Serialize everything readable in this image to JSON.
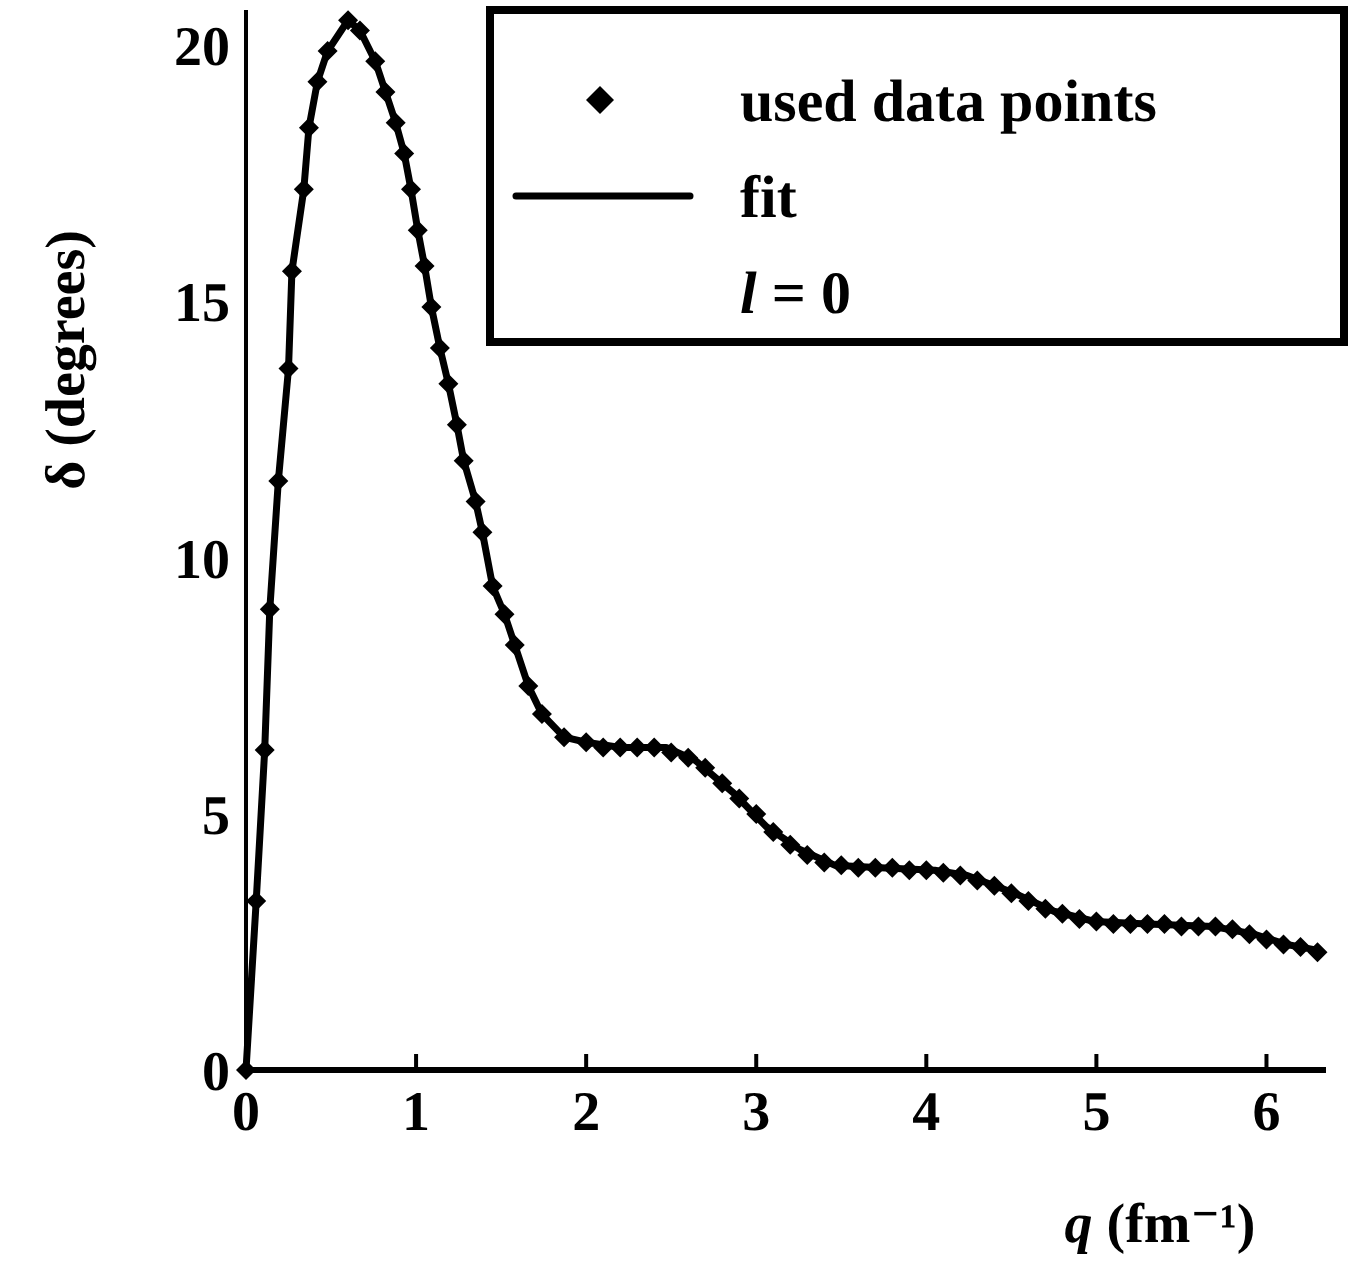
{
  "chart_data": {
    "type": "line",
    "xlabel": "q (fm⁻¹)",
    "ylabel": "δ (degrees)",
    "xlim": [
      0,
      6.35
    ],
    "ylim": [
      0,
      20.7
    ],
    "xticks": [
      0,
      1,
      2,
      3,
      4,
      5,
      6
    ],
    "yticks": [
      0,
      5,
      10,
      15,
      20
    ],
    "grid": false,
    "legend": "top right",
    "annotations": [
      "l = 0"
    ],
    "series": [
      {
        "name": "used data points",
        "type": "scatter",
        "marker": "diamond",
        "color": "#000000",
        "x": [
          0,
          0.06,
          0.11,
          0.14,
          0.19,
          0.25,
          0.27,
          0.34,
          0.37,
          0.42,
          0.48,
          0.6,
          0.67,
          0.76,
          0.82,
          0.88,
          0.93,
          0.97,
          1.01,
          1.05,
          1.09,
          1.14,
          1.19,
          1.24,
          1.28,
          1.35,
          1.39,
          1.45,
          1.52,
          1.58,
          1.66,
          1.74,
          1.87,
          2.0,
          2.1,
          2.2,
          2.3,
          2.4,
          2.5,
          2.6,
          2.7,
          2.8,
          2.9,
          3.0,
          3.1,
          3.2,
          3.3,
          3.4,
          3.5,
          3.6,
          3.7,
          3.8,
          3.9,
          4.0,
          4.1,
          4.2,
          4.3,
          4.4,
          4.5,
          4.6,
          4.7,
          4.8,
          4.9,
          5.0,
          5.1,
          5.2,
          5.3,
          5.4,
          5.5,
          5.6,
          5.7,
          5.8,
          5.9,
          6.0,
          6.1,
          6.2,
          6.3
        ],
        "values": [
          0,
          3.3,
          6.25,
          9.0,
          11.5,
          13.7,
          15.6,
          17.2,
          18.4,
          19.3,
          19.9,
          20.5,
          20.3,
          19.7,
          19.1,
          18.5,
          17.9,
          17.2,
          16.4,
          15.7,
          14.9,
          14.1,
          13.4,
          12.6,
          11.9,
          11.1,
          10.5,
          9.45,
          8.9,
          8.3,
          7.5,
          6.95,
          6.5,
          6.4,
          6.3,
          6.3,
          6.3,
          6.3,
          6.2,
          6.1,
          5.9,
          5.6,
          5.3,
          5.0,
          4.65,
          4.4,
          4.2,
          4.05,
          4.0,
          3.95,
          3.95,
          3.95,
          3.9,
          3.9,
          3.85,
          3.8,
          3.7,
          3.6,
          3.45,
          3.3,
          3.15,
          3.05,
          2.95,
          2.9,
          2.85,
          2.85,
          2.85,
          2.85,
          2.8,
          2.8,
          2.8,
          2.75,
          2.65,
          2.55,
          2.45,
          2.4,
          2.3
        ]
      },
      {
        "name": "fit",
        "type": "line",
        "marker": "none",
        "line_style": "solid",
        "color": "#000000",
        "x": [
          0,
          0.06,
          0.11,
          0.14,
          0.19,
          0.25,
          0.27,
          0.34,
          0.37,
          0.42,
          0.48,
          0.6,
          0.67,
          0.76,
          0.82,
          0.88,
          0.93,
          0.97,
          1.01,
          1.05,
          1.09,
          1.14,
          1.19,
          1.24,
          1.28,
          1.35,
          1.39,
          1.45,
          1.52,
          1.58,
          1.66,
          1.74,
          1.87,
          2.0,
          2.2,
          2.47,
          2.64,
          2.87,
          3.06,
          3.26,
          3.46,
          3.73,
          4.05,
          4.24,
          4.52,
          4.75,
          4.99,
          5.3,
          5.69,
          5.93,
          6.12,
          6.28
        ],
        "values": [
          0,
          3.3,
          6.25,
          9.0,
          11.5,
          13.7,
          15.6,
          17.2,
          18.4,
          19.3,
          19.9,
          20.5,
          20.3,
          19.7,
          19.1,
          18.5,
          17.9,
          17.2,
          16.4,
          15.7,
          14.9,
          14.1,
          13.4,
          12.6,
          11.9,
          11.1,
          10.5,
          9.45,
          8.9,
          8.3,
          7.5,
          6.95,
          6.5,
          6.4,
          6.3,
          6.3,
          6.05,
          5.4,
          4.75,
          4.3,
          4.0,
          3.95,
          3.9,
          3.8,
          3.45,
          3.1,
          2.9,
          2.85,
          2.8,
          2.65,
          2.45,
          2.35
        ]
      }
    ]
  }
}
